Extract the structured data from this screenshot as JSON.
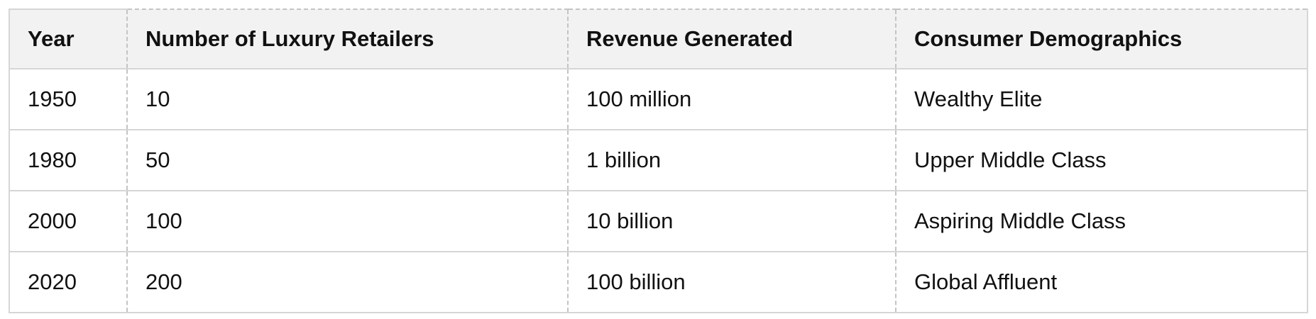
{
  "table": {
    "headers": [
      "Year",
      "Number of Luxury Retailers",
      "Revenue Generated",
      "Consumer Demographics"
    ],
    "rows": [
      [
        "1950",
        "10",
        "100 million",
        "Wealthy Elite"
      ],
      [
        "1980",
        "50",
        "1 billion",
        "Upper Middle Class"
      ],
      [
        "2000",
        "100",
        "10 billion",
        "Aspiring Middle Class"
      ],
      [
        "2020",
        "200",
        "100 billion",
        "Global Affluent"
      ]
    ]
  }
}
